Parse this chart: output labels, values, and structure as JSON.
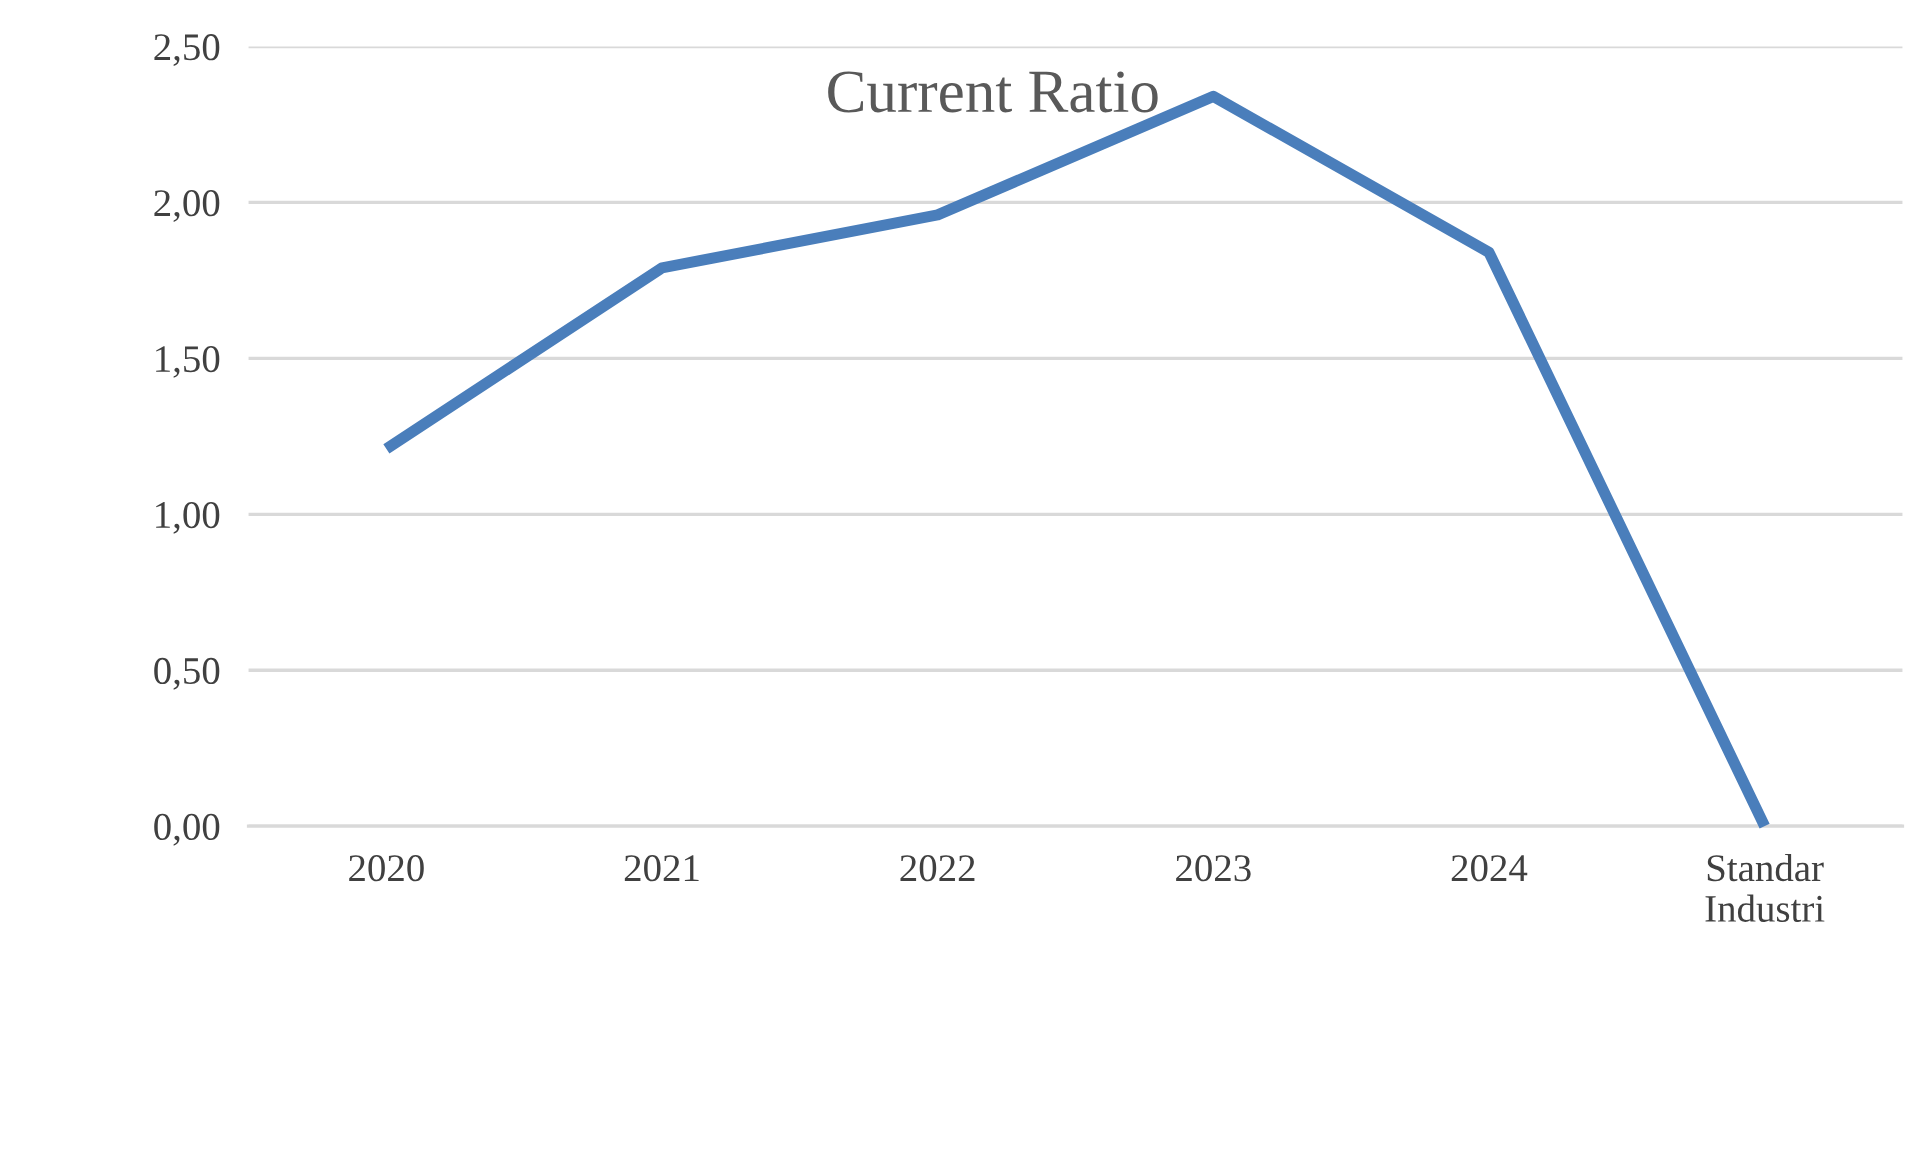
{
  "chart_data": {
    "type": "line",
    "title": "Current Ratio",
    "categories": [
      "2020",
      "2021",
      "2022",
      "2023",
      "2024",
      "Standar\nIndustri"
    ],
    "series": [
      {
        "color": "#4a7ebb",
        "values": [
          1.21,
          1.79,
          1.96,
          2.34,
          1.84,
          0
        ]
      }
    ],
    "ylim": [
      0,
      2.5
    ],
    "yticks": [
      {
        "value": 0,
        "label": "0,00"
      },
      {
        "value": 0.5,
        "label": "0,50"
      },
      {
        "value": 1,
        "label": "1,00"
      },
      {
        "value": 1.5,
        "label": "1,50"
      },
      {
        "value": 2,
        "label": "2,00"
      },
      {
        "value": 2.5,
        "label": "2,50"
      }
    ],
    "grid": "y",
    "marker": "none",
    "line_style": "solid"
  }
}
